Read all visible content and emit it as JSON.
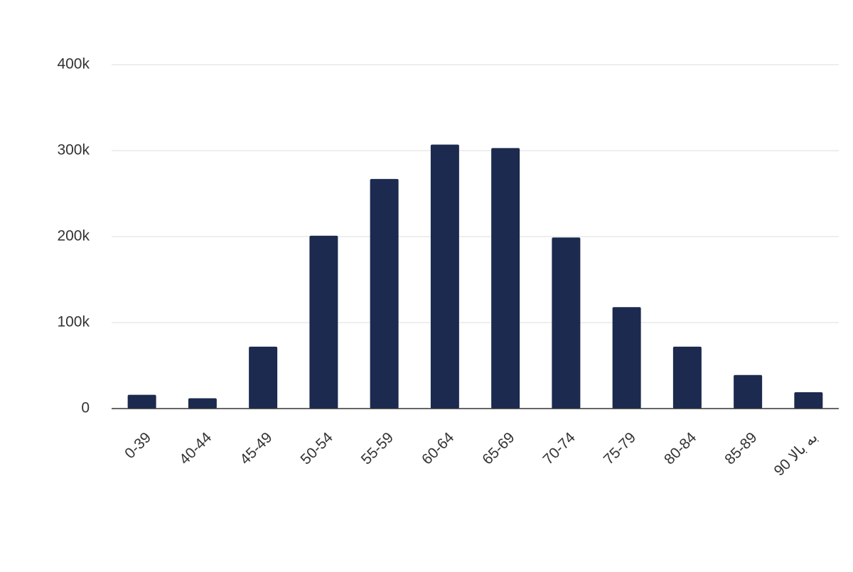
{
  "chart_data": {
    "type": "bar",
    "categories": [
      "0-39",
      "40-44",
      "45-49",
      "50-54",
      "55-59",
      "60-64",
      "65-69",
      "70-74",
      "75-79",
      "80-84",
      "85-89",
      "90 به بالا"
    ],
    "values": [
      16000,
      12000,
      72000,
      201000,
      267000,
      307000,
      303000,
      199000,
      118000,
      72000,
      39000,
      19000
    ],
    "color": "#1b2a4e",
    "ylim": [
      0,
      400000
    ],
    "yticks": [
      0,
      {
        "value": 100000,
        "label": "100k"
      },
      {
        "value": 200000,
        "label": "200k"
      },
      {
        "value": 300000,
        "label": "300k"
      },
      {
        "value": 400000,
        "label": "400k"
      }
    ],
    "grid": true
  }
}
